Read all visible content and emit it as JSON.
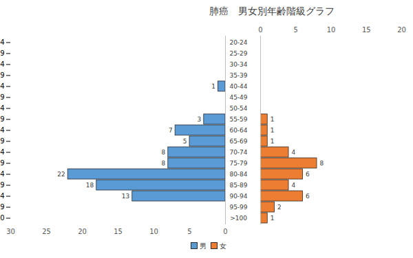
{
  "chart_data": [
    {
      "type": "bar",
      "title": "肺癌　男女別年齢階級グラフ",
      "orientation": "horizontal",
      "data_labels": true,
      "legend": "bottom",
      "categories": [
        "20-24",
        "25-29",
        "30-34",
        "35-39",
        "40-44",
        "45-49",
        "50-54",
        "55-59",
        "60-64",
        "65-69",
        "70-74",
        "75-79",
        "80-84",
        "85-89",
        "90-94",
        "95-99",
        ">100"
      ],
      "series": [
        {
          "name": "男",
          "color": "#5b9bd5",
          "values": [
            null,
            null,
            null,
            null,
            1,
            null,
            null,
            3,
            7,
            5,
            8,
            8,
            22,
            18,
            13,
            null,
            null
          ]
        }
      ],
      "xlim": [
        30,
        0
      ],
      "xticks": [
        0,
        5,
        10,
        15,
        20,
        25,
        30
      ]
    },
    {
      "type": "bar",
      "orientation": "horizontal",
      "data_labels": true,
      "legend": "bottom",
      "categories": [
        "20-24",
        "25-29",
        "30-34",
        "35-39",
        "40-44",
        "45-49",
        "50-54",
        "55-59",
        "60-64",
        "65-69",
        "70-74",
        "75-79",
        "80-84",
        "85-89",
        "90-94",
        "95-99",
        ">100"
      ],
      "series": [
        {
          "name": "女",
          "color": "#ed7d31",
          "values": [
            null,
            null,
            null,
            null,
            null,
            null,
            null,
            1,
            1,
            1,
            4,
            8,
            6,
            4,
            6,
            2,
            1
          ]
        }
      ],
      "xlim": [
        0,
        20
      ],
      "xticks": [
        0,
        5,
        10,
        15,
        20
      ]
    }
  ]
}
